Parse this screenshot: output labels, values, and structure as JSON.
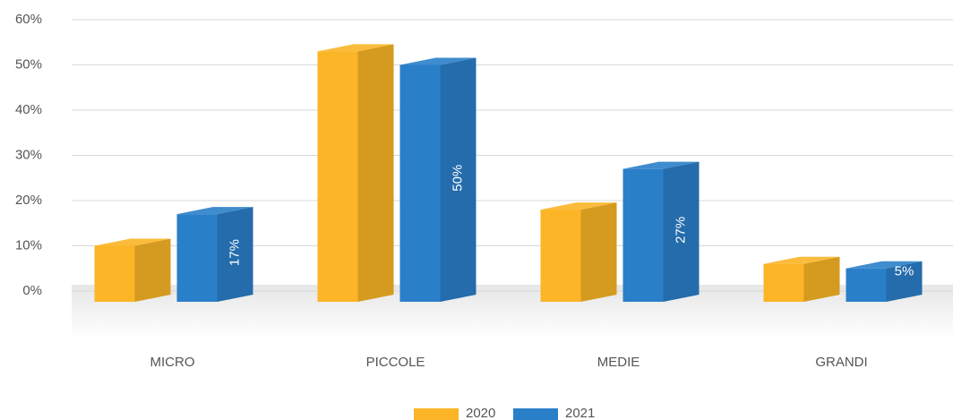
{
  "chart_data": {
    "type": "bar3d",
    "categories": [
      "MICRO",
      "PICCOLE",
      "MEDIE",
      "GRANDI"
    ],
    "series": [
      {
        "name": "2020",
        "color": "#fbb526",
        "values": [
          10,
          53,
          18,
          6
        ]
      },
      {
        "name": "2021",
        "color": "#2a7fc9",
        "values": [
          17,
          50,
          27,
          5
        ],
        "value_labels": [
          "17%",
          "50%",
          "27%",
          "5%"
        ]
      }
    ],
    "ylim": [
      0,
      60
    ],
    "yticks": [
      {
        "value": 0,
        "label": "0%"
      },
      {
        "value": 10,
        "label": "10%"
      },
      {
        "value": 20,
        "label": "20%"
      },
      {
        "value": 30,
        "label": "30%"
      },
      {
        "value": 40,
        "label": "40%"
      },
      {
        "value": 50,
        "label": "50%"
      },
      {
        "value": 60,
        "label": "60%"
      }
    ],
    "grid": true,
    "legend": "bottom"
  }
}
